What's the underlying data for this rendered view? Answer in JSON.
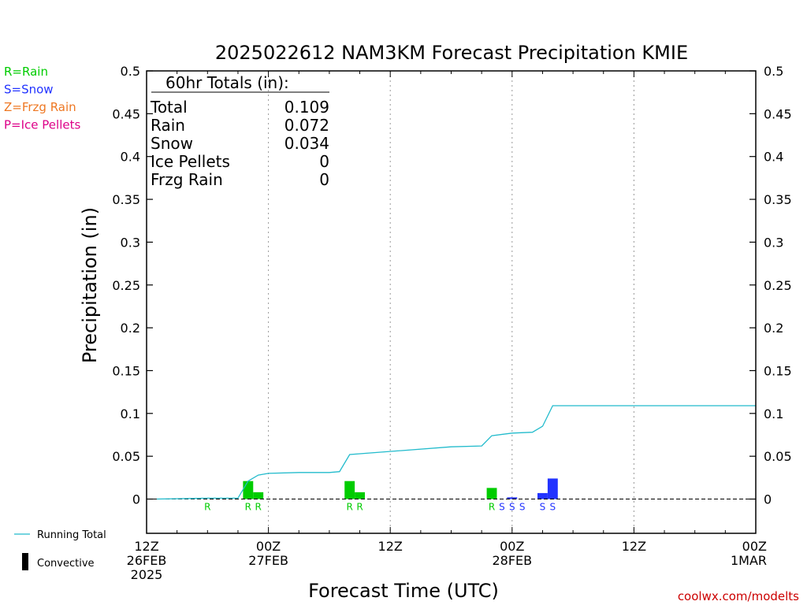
{
  "chart_data": {
    "type": "bar",
    "title": "2025022612 NAM3KM Forecast Precipitation KMIE",
    "xlabel": "Forecast Time (UTC)",
    "ylabel": "Precipitation (in)",
    "ylim": [
      -0.04,
      0.5
    ],
    "y_ticks": [
      0,
      0.05,
      0.1,
      0.15,
      0.2,
      0.25,
      0.3,
      0.35,
      0.4,
      0.45,
      0.5
    ],
    "xlim_hours": [
      0,
      60
    ],
    "x_ticks": [
      {
        "hour": 0,
        "lines": [
          "12Z",
          "26FEB",
          "2025"
        ]
      },
      {
        "hour": 12,
        "lines": [
          "00Z",
          "27FEB"
        ]
      },
      {
        "hour": 24,
        "lines": [
          "12Z"
        ]
      },
      {
        "hour": 36,
        "lines": [
          "00Z",
          "28FEB"
        ]
      },
      {
        "hour": 48,
        "lines": [
          "12Z"
        ]
      },
      {
        "hour": 60,
        "lines": [
          "00Z",
          "1MAR"
        ]
      }
    ],
    "grid": "vertical dotted at 12-hour ticks",
    "colors": {
      "rain": "#00cc00",
      "snow": "#2233ff",
      "running_total": "#22bbcc"
    },
    "bars": [
      {
        "hour": 10,
        "value": 0.021,
        "type": "rain"
      },
      {
        "hour": 11,
        "value": 0.008,
        "type": "rain"
      },
      {
        "hour": 20,
        "value": 0.021,
        "type": "rain"
      },
      {
        "hour": 21,
        "value": 0.008,
        "type": "rain"
      },
      {
        "hour": 34,
        "value": 0.013,
        "type": "rain"
      },
      {
        "hour": 36,
        "value": 0.002,
        "type": "snow"
      },
      {
        "hour": 39,
        "value": 0.007,
        "type": "snow"
      },
      {
        "hour": 40,
        "value": 0.024,
        "type": "snow"
      }
    ],
    "type_labels": [
      {
        "hour": 6,
        "text": "R",
        "type": "rain"
      },
      {
        "hour": 10,
        "text": "R",
        "type": "rain"
      },
      {
        "hour": 11,
        "text": "R",
        "type": "rain"
      },
      {
        "hour": 20,
        "text": "R",
        "type": "rain"
      },
      {
        "hour": 21,
        "text": "R",
        "type": "rain"
      },
      {
        "hour": 34,
        "text": "R",
        "type": "rain"
      },
      {
        "hour": 35,
        "text": "S",
        "type": "snow"
      },
      {
        "hour": 36,
        "text": "S",
        "type": "snow"
      },
      {
        "hour": 37,
        "text": "S",
        "type": "snow"
      },
      {
        "hour": 39,
        "text": "S",
        "type": "snow"
      },
      {
        "hour": 40,
        "text": "S",
        "type": "snow"
      }
    ],
    "running_total": {
      "hours": [
        1,
        6,
        9,
        10,
        11,
        12,
        15,
        18,
        19,
        20,
        30,
        33,
        34,
        36,
        38,
        39,
        40,
        60
      ],
      "values": [
        0,
        0.001,
        0.001,
        0.021,
        0.028,
        0.03,
        0.031,
        0.031,
        0.032,
        0.052,
        0.061,
        0.062,
        0.074,
        0.077,
        0.078,
        0.085,
        0.109,
        0.109
      ]
    },
    "totals_box": {
      "title": "60hr Totals (in):",
      "rows": [
        {
          "label": "Total",
          "value": "0.109"
        },
        {
          "label": "Rain",
          "value": "0.072"
        },
        {
          "label": "Snow",
          "value": "0.034"
        },
        {
          "label": "Ice Pellets",
          "value": "0"
        },
        {
          "label": "Frzg Rain",
          "value": "0"
        }
      ]
    },
    "type_legend": [
      {
        "text": "R=Rain",
        "color": "#00cc00"
      },
      {
        "text": "S=Snow",
        "color": "#2233ff"
      },
      {
        "text": "Z=Frzg Rain",
        "color": "#ee7722"
      },
      {
        "text": "P=Ice Pellets",
        "color": "#dd0088"
      }
    ],
    "series_legend": [
      {
        "text": "Running Total",
        "symbol": "line",
        "color": "#22bbcc"
      },
      {
        "text": "Convective",
        "symbol": "bar",
        "color": "#000000"
      }
    ],
    "credit": "coolwx.com/modelts",
    "credit_color": "#cc0000"
  }
}
